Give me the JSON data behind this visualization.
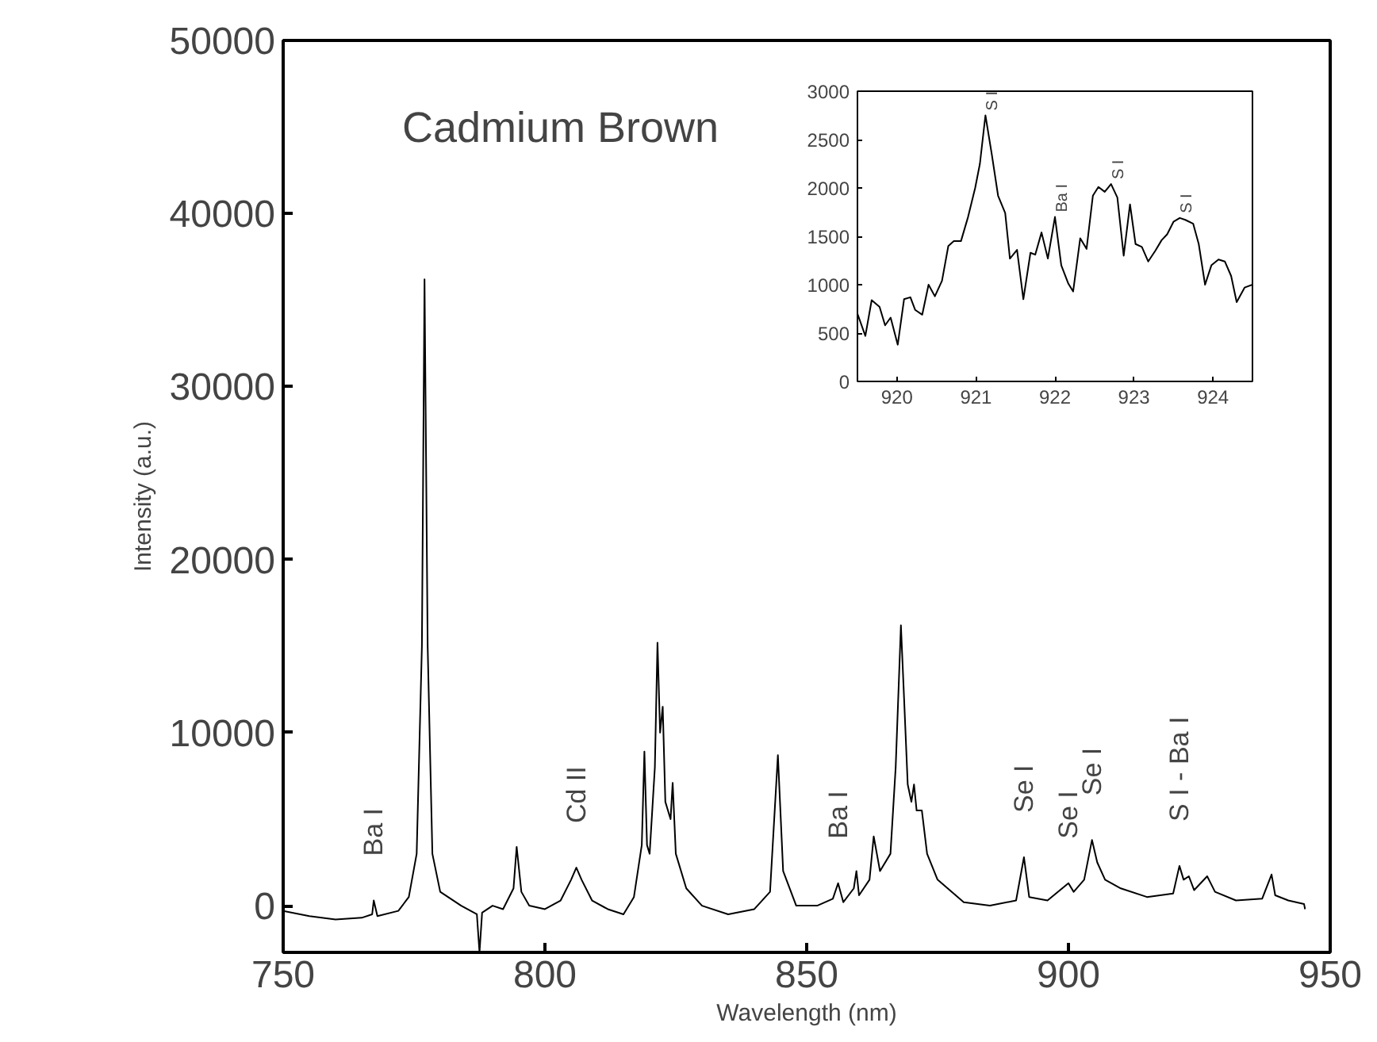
{
  "chart_data": [
    {
      "type": "line",
      "xlabel": "Wavelength (nm)",
      "ylabel": "Intensity (a.u.)",
      "xlim": [
        750,
        950
      ],
      "ylim": [
        -2700,
        50000
      ],
      "xticks": [
        750,
        800,
        850,
        900,
        950
      ],
      "yticks": [
        0,
        10000,
        20000,
        30000,
        40000,
        50000
      ],
      "grid": false,
      "x": [
        750,
        755,
        760,
        765,
        767,
        767.3,
        768,
        772,
        774,
        775.5,
        776.5,
        777,
        777.6,
        778.5,
        780,
        784,
        787,
        787.5,
        788,
        790,
        792,
        794,
        794.6,
        795.5,
        797,
        800,
        803,
        805,
        806,
        807,
        809,
        812,
        815,
        817,
        818.5,
        819,
        819.5,
        820,
        821,
        821.5,
        822,
        822.5,
        823,
        824,
        824.4,
        825,
        827,
        830,
        835,
        840,
        843,
        844.5,
        845.5,
        848,
        852,
        855,
        856,
        857,
        859,
        859.5,
        860,
        862,
        862.8,
        864,
        866,
        867,
        868,
        868.6,
        869.3,
        870,
        870.5,
        871,
        872,
        873,
        875,
        880,
        885,
        890,
        891.5,
        892.5,
        896,
        900,
        901,
        903,
        904.5,
        905.5,
        907,
        910,
        915,
        920,
        921.2,
        922,
        923,
        924,
        926.5,
        928,
        932,
        937,
        938.8,
        939.5,
        942,
        945,
        945.2
      ],
      "series": [
        {
          "color": "#000000",
          "values": [
            -300,
            -600,
            -800,
            -700,
            -500,
            300,
            -600,
            -300,
            500,
            3000,
            15000,
            36200,
            15000,
            3000,
            800,
            0,
            -500,
            -2700,
            -400,
            0,
            -200,
            1000,
            3400,
            800,
            0,
            -200,
            300,
            1500,
            2200,
            1500,
            300,
            -200,
            -500,
            500,
            3500,
            8900,
            3500,
            3000,
            8000,
            15200,
            10000,
            11500,
            6000,
            5000,
            7100,
            3000,
            1000,
            0,
            -500,
            -200,
            800,
            8700,
            2000,
            0,
            0,
            400,
            1300,
            200,
            1000,
            2000,
            600,
            1500,
            4000,
            2000,
            3000,
            8000,
            16200,
            12000,
            7000,
            6000,
            7000,
            5500,
            5500,
            3000,
            1500,
            200,
            0,
            300,
            2800,
            500,
            300,
            1300,
            800,
            1500,
            3800,
            2500,
            1500,
            1000,
            500,
            700,
            2300,
            1500,
            1700,
            900,
            1700,
            800,
            300,
            400,
            1800,
            600,
            300,
            100,
            -200
          ]
        }
      ],
      "annotations": [
        "Cadmium Brown",
        {
          "text": "Ba I",
          "x": 767.3,
          "y": 300
        },
        {
          "text": "Cd II",
          "x": 806,
          "y": 2200
        },
        {
          "text": "Ba I",
          "x": 856,
          "y": 1300
        },
        {
          "text": "Se I",
          "x": 891.5,
          "y": 2800
        },
        {
          "text": "Se I",
          "x": 900,
          "y": 1300
        },
        {
          "text": "Se I",
          "x": 904.5,
          "y": 3800
        },
        {
          "text": "S I - Ba I",
          "x": 921.2,
          "y": 2300
        }
      ]
    },
    {
      "type": "line",
      "xlim": [
        919.5,
        924.5
      ],
      "ylim": [
        0,
        3000
      ],
      "xticks": [
        920,
        921,
        922,
        923,
        924
      ],
      "yticks": [
        0,
        500,
        1000,
        1500,
        2000,
        2500,
        3000
      ],
      "grid": false,
      "x": [
        919.5,
        919.6,
        919.68,
        919.78,
        919.85,
        919.92,
        920.01,
        920.09,
        920.17,
        920.23,
        920.32,
        920.4,
        920.48,
        920.57,
        920.65,
        920.72,
        920.81,
        920.9,
        920.99,
        921.05,
        921.12,
        921.2,
        921.28,
        921.37,
        921.43,
        921.52,
        921.6,
        921.69,
        921.75,
        921.83,
        921.91,
        922.0,
        922.08,
        922.17,
        922.23,
        922.32,
        922.4,
        922.48,
        922.55,
        922.63,
        922.71,
        922.79,
        922.87,
        922.95,
        923.02,
        923.1,
        923.18,
        923.27,
        923.35,
        923.42,
        923.5,
        923.58,
        923.65,
        923.75,
        923.82,
        923.9,
        923.98,
        924.07,
        924.15,
        924.23,
        924.3,
        924.4,
        924.5
      ],
      "series": [
        {
          "color": "#000000",
          "values": [
            700,
            470,
            840,
            770,
            580,
            660,
            380,
            850,
            870,
            740,
            690,
            1000,
            880,
            1040,
            1400,
            1450,
            1450,
            1700,
            2000,
            2250,
            2750,
            2350,
            1920,
            1740,
            1270,
            1360,
            850,
            1330,
            1310,
            1540,
            1270,
            1700,
            1200,
            1010,
            930,
            1480,
            1370,
            1920,
            2010,
            1960,
            2040,
            1900,
            1300,
            1830,
            1420,
            1390,
            1240,
            1350,
            1460,
            1520,
            1650,
            1690,
            1670,
            1630,
            1420,
            1000,
            1200,
            1260,
            1240,
            1090,
            820,
            970,
            1000
          ]
        }
      ],
      "annotations": [
        {
          "text": "S I",
          "x": 921.12,
          "y": 2750
        },
        {
          "text": "Ba I",
          "x": 922.0,
          "y": 1700
        },
        {
          "text": "S I",
          "x": 922.71,
          "y": 2040
        },
        {
          "text": "S I",
          "x": 923.58,
          "y": 1690
        }
      ]
    }
  ]
}
